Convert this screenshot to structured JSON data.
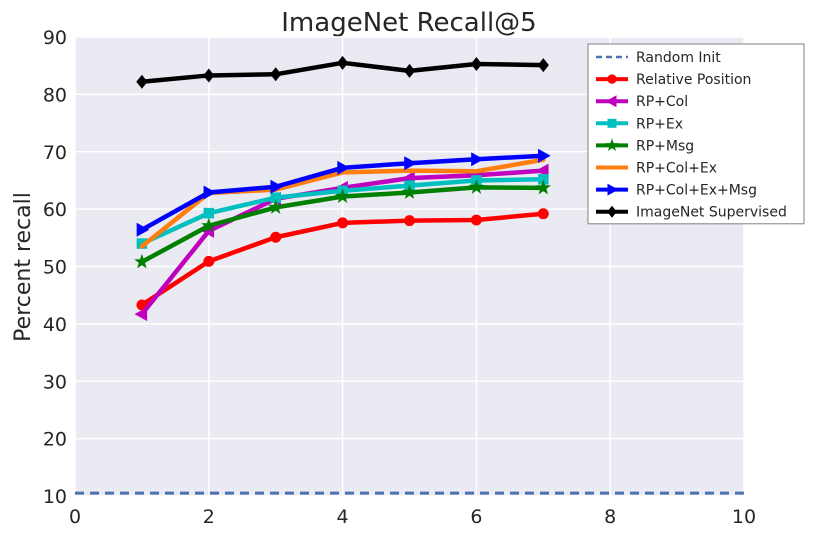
{
  "chart_data": {
    "type": "line",
    "title": "ImageNet Recall@5",
    "xlabel": "",
    "ylabel": "Percent recall",
    "xlim": [
      0,
      10
    ],
    "ylim": [
      10,
      90
    ],
    "xticks": [
      0,
      2,
      4,
      6,
      8,
      10
    ],
    "yticks": [
      10,
      20,
      30,
      40,
      50,
      60,
      70,
      80,
      90
    ],
    "grid": true,
    "legend_position": "top-right",
    "x": [
      1,
      2,
      3,
      4,
      5,
      6,
      7
    ],
    "series": [
      {
        "name": "Random Init",
        "color": "#4c72b0",
        "marker": "none",
        "dashed": true,
        "x": [
          0,
          10
        ],
        "values": [
          10.5,
          10.5
        ]
      },
      {
        "name": "Relative Position",
        "color": "#ff0000",
        "marker": "circle",
        "values": [
          43.3,
          50.9,
          55.1,
          57.6,
          58.0,
          58.1,
          59.2
        ]
      },
      {
        "name": "RP+Col",
        "color": "#bf00bf",
        "marker": "triangle-left",
        "values": [
          41.7,
          56.2,
          61.8,
          63.7,
          65.4,
          65.9,
          66.7
        ]
      },
      {
        "name": "RP+Ex",
        "color": "#00bfbf",
        "marker": "square",
        "values": [
          54.0,
          59.3,
          62.0,
          63.2,
          64.1,
          65.0,
          65.2
        ]
      },
      {
        "name": "RP+Msg",
        "color": "#008000",
        "marker": "star",
        "values": [
          50.8,
          57.1,
          60.3,
          62.2,
          62.9,
          63.8,
          63.7
        ]
      },
      {
        "name": "RP+Col+Ex",
        "color": "#ff7f0e",
        "marker": "none",
        "values": [
          53.5,
          62.8,
          63.4,
          66.4,
          66.7,
          66.6,
          68.6
        ]
      },
      {
        "name": "RP+Col+Ex+Msg",
        "color": "#0000ff",
        "marker": "triangle-right",
        "values": [
          56.4,
          62.9,
          63.9,
          67.2,
          68.0,
          68.7,
          69.3
        ]
      },
      {
        "name": "ImageNet Supervised",
        "color": "#000000",
        "marker": "diamond",
        "values": [
          82.2,
          83.3,
          83.5,
          85.5,
          84.1,
          85.3,
          85.1
        ]
      }
    ]
  }
}
